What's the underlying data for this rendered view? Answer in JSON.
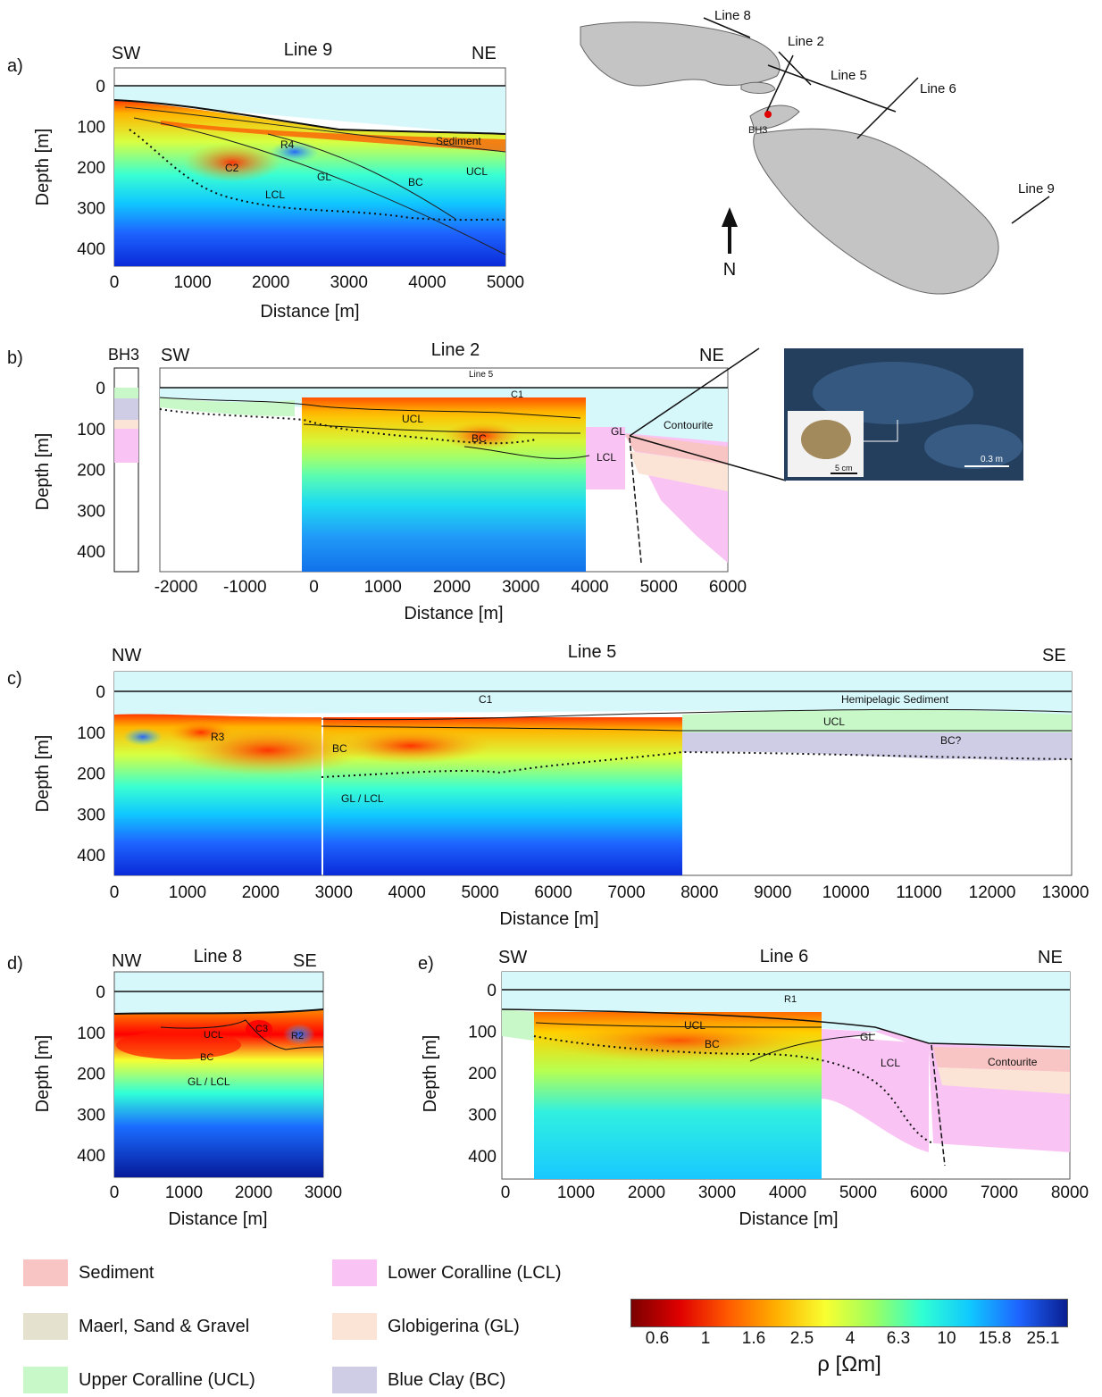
{
  "panels": {
    "a": {
      "letter": "a)",
      "title": "Line 9",
      "left": "SW",
      "right": "NE",
      "xlabel": "Distance [m]",
      "ylabel": "Depth [m]",
      "xticks": [
        "0",
        "1000",
        "2000",
        "3000",
        "4000",
        "5000"
      ],
      "yticks": [
        "0",
        "100",
        "200",
        "300",
        "400"
      ],
      "labels": {
        "r4": "R4",
        "c2": "C2",
        "gl": "GL",
        "lcl": "LCL",
        "bc": "BC",
        "ucl": "UCL",
        "sediment": "Sediment"
      }
    },
    "b": {
      "letter": "b)",
      "title": "Line 2",
      "left": "SW",
      "right": "NE",
      "bh": "BH3",
      "xlabel": "Distance [m]",
      "ylabel": "Depth [m]",
      "xticks": [
        "-2000",
        "-1000",
        "0",
        "1000",
        "2000",
        "3000",
        "4000",
        "5000",
        "6000"
      ],
      "yticks": [
        "0",
        "100",
        "200",
        "300",
        "400"
      ],
      "labels": {
        "line5": "Line 5",
        "c1": "C1",
        "ucl": "UCL",
        "bc": "BC",
        "gl": "GL",
        "lcl": "LCL",
        "contourite": "Contourite"
      },
      "photo": {
        "scale_big": "0.3 m",
        "scale_small": "5 cm"
      }
    },
    "c": {
      "letter": "c)",
      "title": "Line 5",
      "left": "NW",
      "right": "SE",
      "xlabel": "Distance [m]",
      "ylabel": "Depth [m]",
      "xticks": [
        "0",
        "1000",
        "2000",
        "3000",
        "4000",
        "5000",
        "6000",
        "7000",
        "8000",
        "9000",
        "10000",
        "11000",
        "12000",
        "13000"
      ],
      "yticks": [
        "0",
        "100",
        "200",
        "300",
        "400"
      ],
      "labels": {
        "c1": "C1",
        "r3": "R3",
        "bc": "BC",
        "gl_lcl": "GL / LCL",
        "hemi": "Hemipelagic Sediment",
        "ucl": "UCL",
        "bcq": "BC?"
      }
    },
    "d": {
      "letter": "d)",
      "title": "Line 8",
      "left": "NW",
      "right": "SE",
      "xlabel": "Distance [m]",
      "ylabel": "Depth [m]",
      "xticks": [
        "0",
        "1000",
        "2000",
        "3000"
      ],
      "yticks": [
        "0",
        "100",
        "200",
        "300",
        "400"
      ],
      "labels": {
        "ucl": "UCL",
        "c3": "C3",
        "r2": "R2",
        "bc": "BC",
        "gl_lcl": "GL / LCL"
      }
    },
    "e": {
      "letter": "e)",
      "title": "Line 6",
      "left": "SW",
      "right": "NE",
      "xlabel": "Distance [m]",
      "ylabel": "Depth [m]",
      "xticks": [
        "0",
        "1000",
        "2000",
        "3000",
        "4000",
        "5000",
        "6000",
        "7000",
        "8000"
      ],
      "yticks": [
        "0",
        "100",
        "200",
        "300",
        "400"
      ],
      "labels": {
        "r1": "R1",
        "ucl": "UCL",
        "bc": "BC",
        "gl": "GL",
        "lcl": "LCL",
        "contourite": "Contourite"
      }
    }
  },
  "map": {
    "lines": [
      "Line 8",
      "Line 2",
      "Line 5",
      "Line 6",
      "Line 9"
    ],
    "borehole": "BH3",
    "north": "N"
  },
  "legend": [
    {
      "label": "Sediment",
      "color": "#f9c4c4"
    },
    {
      "label": "Maerl, Sand & Gravel",
      "color": "#e4e2cf"
    },
    {
      "label": "Upper Coralline (UCL)",
      "color": "#c8f7c8"
    },
    {
      "label": "Lower Coralline (LCL)",
      "color": "#f9c4f4"
    },
    {
      "label": "Globigerina (GL)",
      "color": "#fbe3d6"
    },
    {
      "label": "Blue Clay (BC)",
      "color": "#cfcde6"
    }
  ],
  "colorbar": {
    "ticks": [
      "0.6",
      "1",
      "1.6",
      "2.5",
      "4",
      "6.3",
      "10",
      "15.8",
      "25.1"
    ],
    "label": "ρ [Ωm]"
  }
}
